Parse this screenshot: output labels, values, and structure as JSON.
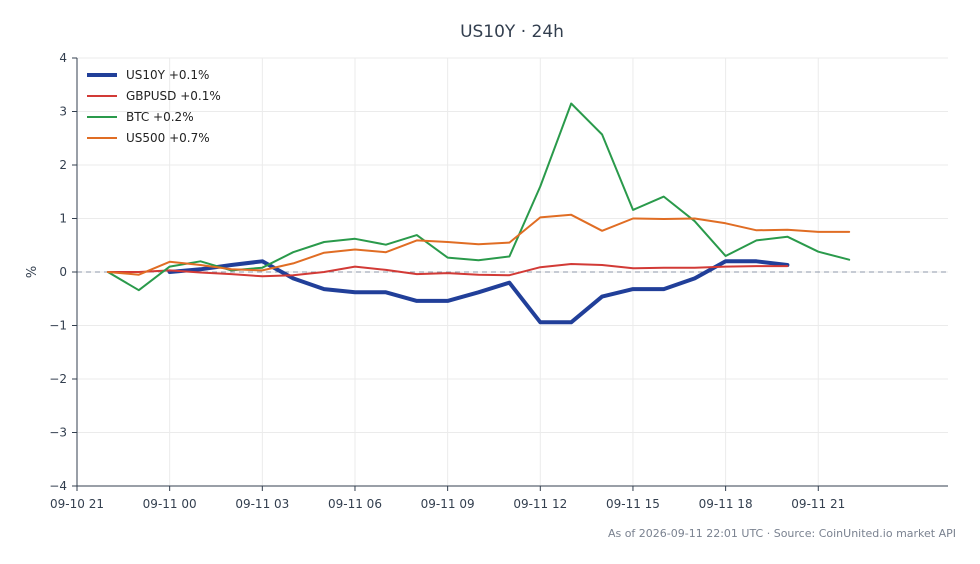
{
  "chart_data": {
    "type": "line",
    "title": "US10Y · 24h",
    "ylabel": "%",
    "xlabel": "",
    "ylim": [
      -4,
      4
    ],
    "yticks": [
      "4",
      "3",
      "2",
      "1",
      "0",
      "−1",
      "−2",
      "−3",
      "−4"
    ],
    "ytick_values": [
      4,
      3,
      2,
      1,
      0,
      -1,
      -2,
      -3,
      -4
    ],
    "x_range_hours": [
      -3,
      25.2
    ],
    "xticks": [
      "09-10 21",
      "09-11 00",
      "09-11 03",
      "09-11 06",
      "09-11 09",
      "09-11 12",
      "09-11 15",
      "09-11 18",
      "09-11 21"
    ],
    "xtick_values": [
      -3,
      0,
      3,
      6,
      9,
      12,
      15,
      18,
      21
    ],
    "grid": true,
    "zero_line": true,
    "legend_position": "top-left",
    "series": [
      {
        "name": "US10Y +0.1%",
        "color": "#213f99",
        "width": 4,
        "x": [
          0,
          1,
          2,
          3,
          4,
          5,
          6,
          7,
          8,
          9,
          10,
          11,
          12,
          13,
          14,
          15,
          16,
          17,
          18,
          19,
          20
        ],
        "y": [
          0.0,
          0.05,
          0.13,
          0.2,
          -0.12,
          -0.32,
          -0.38,
          -0.38,
          -0.54,
          -0.54,
          -0.38,
          -0.2,
          -0.94,
          -0.94,
          -0.46,
          -0.32,
          -0.32,
          -0.12,
          0.2,
          0.2,
          0.13
        ]
      },
      {
        "name": "GBPUSD +0.1%",
        "color": "#d23a36",
        "width": 2,
        "x": [
          -2,
          -1,
          0,
          1,
          2,
          3,
          4,
          5,
          6,
          7,
          8,
          9,
          10,
          11,
          12,
          13,
          14,
          15,
          16,
          17,
          18,
          19,
          20
        ],
        "y": [
          0.0,
          0.0,
          0.03,
          -0.01,
          -0.04,
          -0.08,
          -0.06,
          0.0,
          0.1,
          0.04,
          -0.04,
          -0.02,
          -0.05,
          -0.06,
          0.09,
          0.15,
          0.13,
          0.07,
          0.08,
          0.08,
          0.1,
          0.11,
          0.11
        ]
      },
      {
        "name": "BTC +0.2%",
        "color": "#2a9a4b",
        "width": 2,
        "x": [
          -2,
          -1,
          0,
          1,
          2,
          3,
          4,
          5,
          6,
          7,
          8,
          9,
          10,
          11,
          12,
          13,
          14,
          15,
          16,
          17,
          18,
          19,
          20,
          21,
          22
        ],
        "y": [
          0.0,
          -0.34,
          0.1,
          0.2,
          0.03,
          0.08,
          0.37,
          0.56,
          0.62,
          0.51,
          0.69,
          0.27,
          0.22,
          0.29,
          1.6,
          3.15,
          2.57,
          1.16,
          1.41,
          0.95,
          0.3,
          0.59,
          0.66,
          0.38,
          0.23
        ]
      },
      {
        "name": "US500 +0.7%",
        "color": "#e06d24",
        "width": 2,
        "x": [
          -2,
          -1,
          0,
          1,
          2,
          3,
          4,
          5,
          6,
          7,
          8,
          9,
          10,
          11,
          12,
          13,
          14,
          15,
          16,
          17,
          18,
          19,
          20,
          21,
          22
        ],
        "y": [
          0.0,
          -0.05,
          0.19,
          0.13,
          0.05,
          0.03,
          0.16,
          0.36,
          0.42,
          0.37,
          0.59,
          0.56,
          0.52,
          0.55,
          1.02,
          1.07,
          0.77,
          1.0,
          0.99,
          1.0,
          0.91,
          0.78,
          0.79,
          0.75,
          0.75
        ]
      }
    ]
  },
  "footer": "As of 2026-09-11 22:01 UTC · Source: CoinUnited.io market API"
}
